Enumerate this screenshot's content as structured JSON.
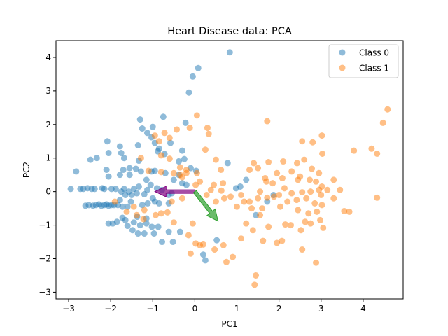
{
  "chart_data": {
    "type": "scatter",
    "title": "Heart Disease data: PCA",
    "xlabel": "PC1",
    "ylabel": "PC2",
    "xlim": [
      -3.3,
      4.95
    ],
    "ylim": [
      -3.2,
      4.5
    ],
    "x_ticks": [
      -3,
      -2,
      -1,
      0,
      1,
      2,
      3,
      4
    ],
    "y_ticks": [
      -3,
      -2,
      -1,
      0,
      1,
      2,
      3,
      4
    ],
    "grid": false,
    "legend_position": "top-right",
    "series": [
      {
        "name": "Class 0",
        "color": "#1f77b4",
        "points": [
          [
            0.83,
            4.15
          ],
          [
            0.08,
            3.68
          ],
          [
            -0.05,
            3.43
          ],
          [
            -0.14,
            2.95
          ],
          [
            -0.75,
            2.23
          ],
          [
            -1.3,
            2.15
          ],
          [
            -0.22,
            2.05
          ],
          [
            -1.0,
            1.93
          ],
          [
            -1.25,
            1.88
          ],
          [
            -1.13,
            1.75
          ],
          [
            -2.08,
            1.5
          ],
          [
            -1.78,
            1.35
          ],
          [
            -1.35,
            1.38
          ],
          [
            -1.03,
            1.62
          ],
          [
            -0.95,
            1.45
          ],
          [
            -0.58,
            1.45
          ],
          [
            -0.85,
            1.28
          ],
          [
            -2.05,
            1.15
          ],
          [
            -1.75,
            1.15
          ],
          [
            -0.88,
            1.2
          ],
          [
            -0.72,
            1.12
          ],
          [
            -0.3,
            1.22
          ],
          [
            -0.25,
            0.97
          ],
          [
            -2.48,
            0.95
          ],
          [
            -2.33,
            1.0
          ],
          [
            -1.68,
            1.0
          ],
          [
            -1.33,
            0.92
          ],
          [
            -0.38,
            0.9
          ],
          [
            0.78,
            0.85
          ],
          [
            -2.82,
            0.6
          ],
          [
            -2.1,
            0.65
          ],
          [
            -1.7,
            0.65
          ],
          [
            -1.55,
            0.7
          ],
          [
            -1.4,
            0.68
          ],
          [
            -1.28,
            0.6
          ],
          [
            -1.03,
            0.6
          ],
          [
            -0.95,
            0.62
          ],
          [
            -0.7,
            0.55
          ],
          [
            -0.38,
            0.5
          ],
          [
            -0.1,
            0.7
          ],
          [
            0.03,
            0.62
          ],
          [
            -2.05,
            0.45
          ],
          [
            -1.78,
            0.5
          ],
          [
            -1.55,
            0.5
          ],
          [
            -1.15,
            0.35
          ],
          [
            -0.5,
            0.35
          ],
          [
            -0.3,
            0.25
          ],
          [
            -0.2,
            0.2
          ],
          [
            -2.95,
            0.08
          ],
          [
            -2.72,
            0.08
          ],
          [
            -2.65,
            0.08
          ],
          [
            -2.55,
            0.1
          ],
          [
            -2.45,
            0.08
          ],
          [
            -2.38,
            0.08
          ],
          [
            -2.2,
            0.1
          ],
          [
            -2.15,
            0.08
          ],
          [
            -1.98,
            0.08
          ],
          [
            -1.88,
            0.08
          ],
          [
            -1.75,
            0.0
          ],
          [
            -1.68,
            0.08
          ],
          [
            -1.57,
            0.0
          ],
          [
            -1.45,
            0.08
          ],
          [
            -1.33,
            0.15
          ],
          [
            -1.13,
            0.05
          ],
          [
            -1.05,
            0.2
          ],
          [
            -0.9,
            0.1
          ],
          [
            -0.78,
            0.05
          ],
          [
            -1.65,
            -0.1
          ],
          [
            -1.5,
            -0.1
          ],
          [
            -1.38,
            -0.05
          ],
          [
            -1.2,
            -0.08
          ],
          [
            -1.0,
            -0.2
          ],
          [
            -0.62,
            -0.1
          ],
          [
            -0.55,
            -0.05
          ],
          [
            -2.6,
            -0.42
          ],
          [
            -2.52,
            -0.4
          ],
          [
            -2.42,
            -0.42
          ],
          [
            -2.35,
            -0.4
          ],
          [
            -2.28,
            -0.38
          ],
          [
            -2.22,
            -0.42
          ],
          [
            -2.15,
            -0.4
          ],
          [
            -2.1,
            -0.38
          ],
          [
            -2.05,
            -0.42
          ],
          [
            -1.98,
            -0.4
          ],
          [
            -1.92,
            -0.4
          ],
          [
            -1.83,
            -0.4
          ],
          [
            -1.72,
            -0.45
          ],
          [
            -1.6,
            -0.45
          ],
          [
            -1.78,
            -0.25
          ],
          [
            -1.52,
            -0.3
          ],
          [
            -1.25,
            -0.4
          ],
          [
            -1.12,
            -0.35
          ],
          [
            -0.95,
            -0.3
          ],
          [
            -0.85,
            -0.35
          ],
          [
            -0.62,
            -0.35
          ],
          [
            -1.72,
            -0.78
          ],
          [
            -1.65,
            -0.85
          ],
          [
            -1.37,
            -0.75
          ],
          [
            -1.15,
            -0.8
          ],
          [
            -2.05,
            -0.95
          ],
          [
            -1.95,
            -0.95
          ],
          [
            -1.85,
            -0.9
          ],
          [
            -1.45,
            -0.92
          ],
          [
            -1.3,
            -1.0
          ],
          [
            -1.15,
            -0.95
          ],
          [
            -1.02,
            -1.05
          ],
          [
            -0.87,
            -1.05
          ],
          [
            -1.6,
            -1.02
          ],
          [
            -1.48,
            -1.15
          ],
          [
            -1.35,
            -1.25
          ],
          [
            -1.2,
            -1.25
          ],
          [
            -0.97,
            -1.25
          ],
          [
            -0.62,
            -1.2
          ],
          [
            -0.78,
            -1.5
          ],
          [
            -0.52,
            -1.5
          ],
          [
            -0.35,
            -1.2
          ],
          [
            0.2,
            -1.88
          ],
          [
            0.25,
            -2.05
          ],
          [
            0.52,
            -1.45
          ],
          [
            0.98,
            0.1
          ],
          [
            1.08,
            0.15
          ],
          [
            1.22,
            0.35
          ],
          [
            1.45,
            -0.7
          ],
          [
            1.72,
            -0.3
          ],
          [
            1.87,
            -0.1
          ]
        ]
      },
      {
        "name": "Class 1",
        "color": "#ff7f0e",
        "points": [
          [
            4.58,
            2.45
          ],
          [
            4.47,
            2.05
          ],
          [
            4.2,
            1.28
          ],
          [
            4.33,
            1.13
          ],
          [
            3.78,
            1.22
          ],
          [
            4.33,
            -0.18
          ],
          [
            3.02,
            1.67
          ],
          [
            3.03,
            1.13
          ],
          [
            2.55,
            1.5
          ],
          [
            2.8,
            1.47
          ],
          [
            1.72,
            2.1
          ],
          [
            1.75,
            0.88
          ],
          [
            2.1,
            0.9
          ],
          [
            2.43,
            0.85
          ],
          [
            2.3,
            0.6
          ],
          [
            1.95,
            0.55
          ],
          [
            2.08,
            0.4
          ],
          [
            2.6,
            0.95
          ],
          [
            2.78,
            0.68
          ],
          [
            2.95,
            0.55
          ],
          [
            2.5,
            0.45
          ],
          [
            2.45,
            0.35
          ],
          [
            2.73,
            0.35
          ],
          [
            2.88,
            0.3
          ],
          [
            3.3,
            0.35
          ],
          [
            3.02,
            0.15
          ],
          [
            3.45,
            0.05
          ],
          [
            3.3,
            -0.2
          ],
          [
            3.55,
            -0.58
          ],
          [
            3.67,
            -0.6
          ],
          [
            2.13,
            0.1
          ],
          [
            2.3,
            -0.05
          ],
          [
            2.55,
            -0.02
          ],
          [
            2.75,
            0.0
          ],
          [
            2.95,
            0.05
          ],
          [
            3.15,
            0.05
          ],
          [
            3.0,
            -0.1
          ],
          [
            2.65,
            -0.2
          ],
          [
            2.42,
            -0.25
          ],
          [
            2.2,
            -0.3
          ],
          [
            2.0,
            -0.1
          ],
          [
            1.88,
            -0.15
          ],
          [
            2.03,
            -0.45
          ],
          [
            2.85,
            -0.35
          ],
          [
            3.02,
            -0.4
          ],
          [
            2.45,
            -0.55
          ],
          [
            2.7,
            -0.65
          ],
          [
            2.9,
            -0.6
          ],
          [
            2.62,
            -0.9
          ],
          [
            2.75,
            -0.95
          ],
          [
            2.98,
            -0.85
          ],
          [
            3.05,
            -1.08
          ],
          [
            2.15,
            -0.98
          ],
          [
            2.28,
            -1.0
          ],
          [
            2.52,
            -1.15
          ],
          [
            2.07,
            -1.47
          ],
          [
            1.4,
            0.85
          ],
          [
            1.5,
            0.7
          ],
          [
            1.3,
            0.65
          ],
          [
            1.67,
            0.4
          ],
          [
            1.7,
            0.3
          ],
          [
            1.85,
            0.25
          ],
          [
            1.55,
            0.0
          ],
          [
            1.72,
            -0.18
          ],
          [
            1.5,
            -0.2
          ],
          [
            1.3,
            -0.3
          ],
          [
            1.17,
            -0.3
          ],
          [
            1.35,
            -0.5
          ],
          [
            1.0,
            -0.45
          ],
          [
            1.1,
            -0.1
          ],
          [
            0.85,
            -0.15
          ],
          [
            0.7,
            -0.2
          ],
          [
            0.63,
            0.03
          ],
          [
            0.67,
            0.25
          ],
          [
            0.45,
            0.2
          ],
          [
            0.38,
            0.05
          ],
          [
            0.5,
            -0.3
          ],
          [
            1.6,
            -0.5
          ],
          [
            1.55,
            -0.7
          ],
          [
            1.22,
            -0.95
          ],
          [
            1.38,
            -1.15
          ],
          [
            1.75,
            -1.05
          ],
          [
            1.62,
            -1.47
          ],
          [
            1.1,
            -1.4
          ],
          [
            1.95,
            -1.53
          ],
          [
            0.9,
            -1.95
          ],
          [
            0.75,
            -2.1
          ],
          [
            0.68,
            -1.6
          ],
          [
            0.47,
            -1.73
          ],
          [
            0.2,
            -1.58
          ],
          [
            0.12,
            -1.6
          ],
          [
            0.02,
            -1.55
          ],
          [
            -0.1,
            -1.85
          ],
          [
            -0.15,
            -1.3
          ],
          [
            -0.05,
            -0.95
          ],
          [
            -0.5,
            -0.92
          ],
          [
            -0.65,
            -0.62
          ],
          [
            -0.8,
            -0.65
          ],
          [
            -0.93,
            -0.7
          ],
          [
            -1.2,
            -0.55
          ],
          [
            -1.38,
            -0.7
          ],
          [
            -1.62,
            -0.6
          ],
          [
            -1.45,
            -0.45
          ],
          [
            -0.55,
            -0.3
          ],
          [
            -1.9,
            -0.3
          ],
          [
            -0.8,
            1.08
          ],
          [
            -0.6,
            0.98
          ],
          [
            -0.5,
            0.55
          ],
          [
            -0.35,
            0.5
          ],
          [
            -0.3,
            0.43
          ],
          [
            -1.1,
            0.62
          ],
          [
            -0.8,
            0.58
          ],
          [
            -1.28,
            1.0
          ],
          [
            -0.72,
            1.75
          ],
          [
            -0.43,
            1.85
          ],
          [
            -0.85,
            1.5
          ],
          [
            -0.6,
            1.6
          ],
          [
            -0.95,
            1.67
          ],
          [
            0.05,
            2.27
          ],
          [
            -0.12,
            1.9
          ],
          [
            0.3,
            1.9
          ],
          [
            0.33,
            1.72
          ],
          [
            0.25,
            1.25
          ],
          [
            0.5,
            0.95
          ],
          [
            0.62,
            0.65
          ],
          [
            0.05,
            0.55
          ],
          [
            0.12,
            0.3
          ],
          [
            0.02,
            0.2
          ],
          [
            -0.2,
            0.65
          ],
          [
            -0.35,
            0.72
          ],
          [
            -0.2,
            0.55
          ],
          [
            -0.3,
            -0.2
          ],
          [
            -1.22,
            -0.82
          ],
          [
            1.45,
            -2.5
          ],
          [
            1.42,
            -2.78
          ],
          [
            2.55,
            -1.73
          ],
          [
            2.88,
            -2.12
          ],
          [
            0.28,
            -0.1
          ]
        ]
      }
    ],
    "arrows": [
      {
        "color": "#800080",
        "from": [
          0.0,
          0.0
        ],
        "to": [
          -0.95,
          -0.0
        ]
      },
      {
        "color": "#2ca02c",
        "from": [
          0.0,
          0.0
        ],
        "to": [
          0.55,
          -0.88
        ]
      }
    ]
  }
}
